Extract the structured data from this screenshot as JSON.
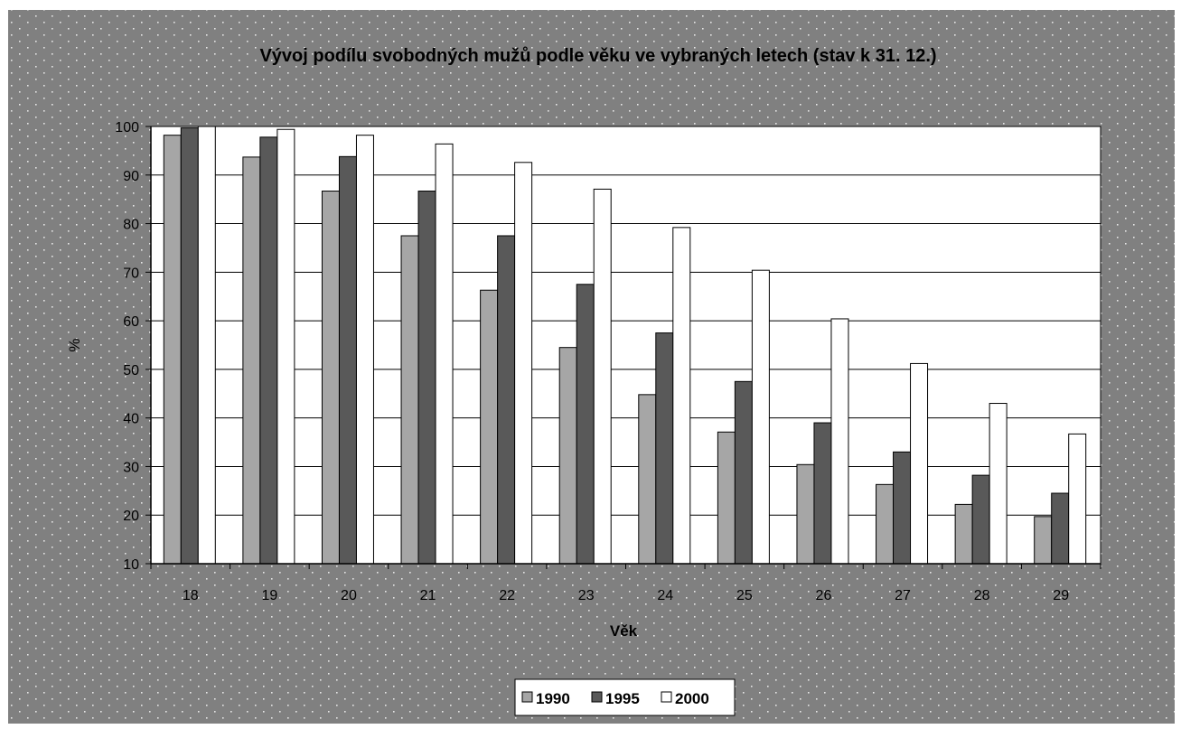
{
  "chart_data": {
    "type": "bar",
    "title": "Vývoj podílu svobodných mužů podle věku ve vybraných letech (stav k 31. 12.)",
    "xlabel": "Věk",
    "ylabel": "%",
    "ylim": [
      10,
      100
    ],
    "yticks": [
      10,
      20,
      30,
      40,
      50,
      60,
      70,
      80,
      90,
      100
    ],
    "grid": true,
    "legend_position": "bottom",
    "categories": [
      "18",
      "19",
      "20",
      "21",
      "22",
      "23",
      "24",
      "25",
      "26",
      "27",
      "28",
      "29"
    ],
    "series": [
      {
        "name": "1990",
        "color": "#a6a6a6",
        "values": [
          98.2,
          93.7,
          86.7,
          77.5,
          66.3,
          54.5,
          44.8,
          37.1,
          30.4,
          26.3,
          22.2,
          19.7
        ]
      },
      {
        "name": "1995",
        "color": "#595959",
        "values": [
          99.7,
          97.8,
          93.8,
          86.7,
          77.5,
          67.5,
          57.5,
          47.5,
          39.0,
          33.0,
          28.2,
          24.5
        ]
      },
      {
        "name": "2000",
        "color": "#ffffff",
        "values": [
          100.0,
          99.4,
          98.2,
          96.4,
          92.6,
          87.1,
          79.2,
          70.4,
          60.4,
          51.2,
          43.0,
          36.7
        ]
      }
    ]
  },
  "colors": {
    "chart_area": "#808080",
    "plot_area": "#ffffff",
    "dots": "#e6e6e6",
    "ink": "#000000"
  }
}
